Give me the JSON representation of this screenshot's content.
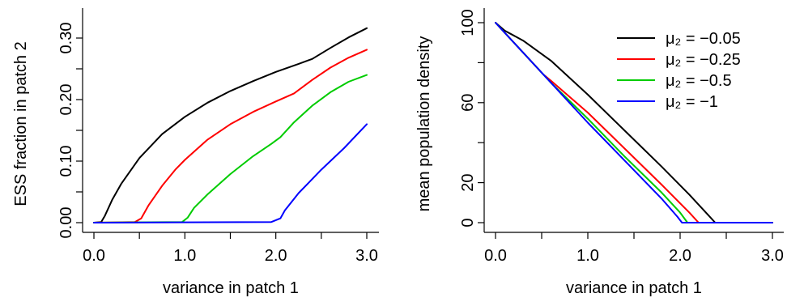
{
  "chart_data": [
    {
      "type": "line",
      "title": "",
      "xlabel": "variance in patch 1",
      "ylabel": "ESS fraction in patch 2",
      "xlim": [
        0,
        3
      ],
      "ylim": [
        0,
        0.3
      ],
      "x_ticks": [
        0,
        0.5,
        1,
        1.5,
        2,
        2.5,
        3
      ],
      "x_tick_labels": [
        "0.0",
        "",
        "1.0",
        "",
        "2.0",
        "",
        "3.0"
      ],
      "y_ticks": [
        0,
        0.05,
        0.1,
        0.15,
        0.2,
        0.25,
        0.3
      ],
      "y_tick_labels": [
        "0.00",
        "",
        "0.10",
        "",
        "0.20",
        "",
        "0.30"
      ],
      "grid": false,
      "series": [
        {
          "color": "#000000",
          "x": [
            0,
            0.08,
            0.12,
            0.2,
            0.3,
            0.5,
            0.75,
            1.0,
            1.25,
            1.5,
            1.75,
            2.0,
            2.25,
            2.4,
            2.6,
            2.8,
            3.0
          ],
          "y": [
            0,
            0.001,
            0.011,
            0.037,
            0.063,
            0.105,
            0.144,
            0.172,
            0.195,
            0.214,
            0.23,
            0.245,
            0.258,
            0.266,
            0.284,
            0.301,
            0.316
          ]
        },
        {
          "color": "#ff0000",
          "x": [
            0,
            0.45,
            0.52,
            0.6,
            0.75,
            0.9,
            1.0,
            1.25,
            1.5,
            1.75,
            2.0,
            2.2,
            2.4,
            2.6,
            2.8,
            3.0
          ],
          "y": [
            0,
            0.001,
            0.007,
            0.028,
            0.06,
            0.087,
            0.102,
            0.135,
            0.16,
            0.18,
            0.197,
            0.21,
            0.232,
            0.252,
            0.268,
            0.281
          ]
        },
        {
          "color": "#00cc00",
          "x": [
            0,
            0.97,
            1.03,
            1.1,
            1.25,
            1.5,
            1.75,
            1.95,
            2.05,
            2.2,
            2.4,
            2.6,
            2.8,
            3.0
          ],
          "y": [
            0,
            0.001,
            0.008,
            0.024,
            0.046,
            0.079,
            0.108,
            0.128,
            0.139,
            0.163,
            0.19,
            0.212,
            0.229,
            0.24
          ]
        },
        {
          "color": "#0000ff",
          "x": [
            0,
            1.95,
            2.05,
            2.1,
            2.25,
            2.5,
            2.75,
            3.0
          ],
          "y": [
            0,
            0.001,
            0.007,
            0.02,
            0.048,
            0.086,
            0.121,
            0.16
          ]
        }
      ]
    },
    {
      "type": "line",
      "title": "",
      "xlabel": "variance in patch 1",
      "ylabel": "mean population density",
      "xlim": [
        0,
        3
      ],
      "ylim": [
        0,
        100
      ],
      "x_ticks": [
        0,
        0.5,
        1,
        1.5,
        2,
        2.5,
        3
      ],
      "x_tick_labels": [
        "0.0",
        "",
        "1.0",
        "",
        "2.0",
        "",
        "3.0"
      ],
      "y_ticks": [
        0,
        20,
        40,
        60,
        80,
        100
      ],
      "y_tick_labels": [
        "0",
        "20",
        "",
        "60",
        "",
        "100"
      ],
      "grid": false,
      "legend_position": "top-right",
      "series": [
        {
          "name": "μ₂ = −0.05",
          "color": "#000000",
          "x": [
            0,
            0.1,
            0.3,
            0.6,
            1.0,
            1.4,
            1.8,
            2.1,
            2.3,
            2.38,
            3.0
          ],
          "y": [
            100,
            96,
            91,
            81,
            64,
            46,
            28,
            14,
            4,
            0,
            0
          ]
        },
        {
          "name": "μ₂ = −0.25",
          "color": "#ff0000",
          "x": [
            0,
            0.1,
            0.3,
            0.52,
            0.6,
            1.0,
            1.4,
            1.8,
            2.1,
            2.2,
            3.0
          ],
          "y": [
            100,
            95,
            85,
            74,
            71,
            55,
            37,
            19,
            5,
            0,
            0
          ]
        },
        {
          "name": "μ₂ = −0.5",
          "color": "#00cc00",
          "x": [
            0,
            0.1,
            0.3,
            0.6,
            1.0,
            1.4,
            1.8,
            2.0,
            2.08,
            3.0
          ],
          "y": [
            100,
            95,
            85,
            70,
            52,
            33,
            15,
            5,
            0,
            0
          ]
        },
        {
          "name": "μ₂ = −1",
          "color": "#0000ff",
          "x": [
            0,
            0.1,
            0.3,
            0.6,
            1.0,
            1.4,
            1.8,
            1.97,
            2.02,
            3.0
          ],
          "y": [
            100,
            95,
            85,
            70,
            50,
            31,
            12,
            3,
            0,
            0
          ]
        }
      ]
    }
  ]
}
